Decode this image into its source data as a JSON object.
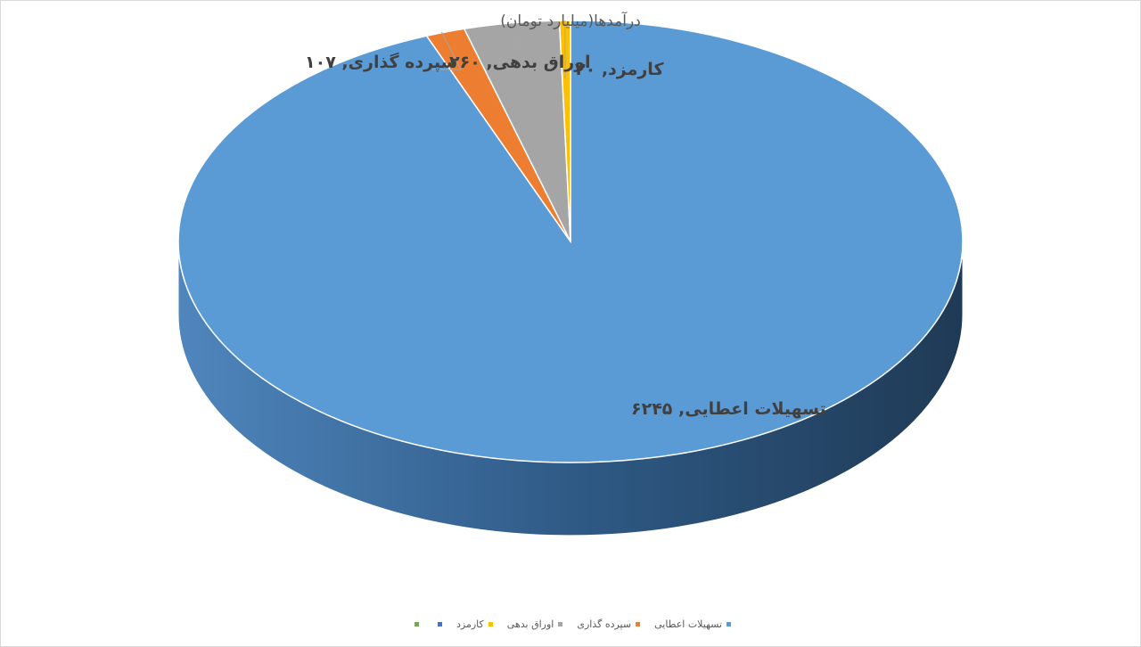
{
  "chart_data": {
    "type": "pie",
    "title": "درآمدها(میلیارد تومان)",
    "slices": [
      {
        "name": "تسهیلات اعطایی",
        "value": 6245,
        "value_label": "۶۲۴۵",
        "color": "#5b9bd5"
      },
      {
        "name": "سپرده گذاری",
        "value": 107,
        "value_label": "۱۰۷",
        "color": "#ed7d31"
      },
      {
        "name": "اوراق بدهی",
        "value": 260,
        "value_label": "۲۶۰",
        "color": "#a5a5a5"
      },
      {
        "name": "کارمزد",
        "value": 30,
        "value_label": "۳۰",
        "color": "#ffc000"
      }
    ],
    "legend": {
      "placement": "bottom",
      "items": [
        {
          "label": "تسهیلات اعطایی",
          "color": "#5b9bd5"
        },
        {
          "label": "سپرده گذاری",
          "color": "#ed7d31"
        },
        {
          "label": "اوراق بدهی",
          "color": "#a5a5a5"
        },
        {
          "label": "کارمزد",
          "color": "#ffc000"
        },
        {
          "label": "",
          "color": "#4472c4"
        },
        {
          "label": "",
          "color": "#70ad47"
        }
      ]
    },
    "data_labels": [
      {
        "text": "تسهیلات اعطایی, ۶۲۴۵"
      },
      {
        "text": "سپرده گذاری, ۱۰۷"
      },
      {
        "text": "اوراق بدهی, ۲۶۰"
      },
      {
        "text": "کارمزد, ۳۰"
      }
    ]
  }
}
